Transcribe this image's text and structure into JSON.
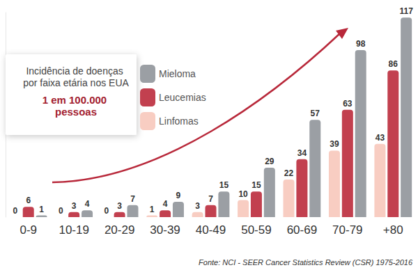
{
  "chart_data": {
    "type": "bar",
    "title": "Incidência de doenças por faixa etária nos EUA",
    "subtitle": "1 em 100.000 pessoas",
    "source": "Fonte: NCI - SEER Cancer Statistics Review (CSR) 1975-2016",
    "categories": [
      "0-9",
      "10-19",
      "20-29",
      "30-39",
      "40-49",
      "50-59",
      "60-69",
      "70-79",
      "+80"
    ],
    "series": [
      {
        "name": "Linfomas",
        "color": "#f8cdc2",
        "values": [
          0,
          0,
          0,
          1,
          3,
          10,
          22,
          39,
          43
        ]
      },
      {
        "name": "Leucemias",
        "color": "#c2404f",
        "values": [
          6,
          3,
          3,
          4,
          7,
          15,
          34,
          63,
          86
        ]
      },
      {
        "name": "Mieloma",
        "color": "#9b9fa4",
        "values": [
          1,
          4,
          7,
          9,
          15,
          29,
          57,
          98,
          117
        ]
      }
    ],
    "ylim": [
      0,
      120
    ],
    "grid": false,
    "legend": "top-left",
    "data_labels": true,
    "tick_labels": "x"
  }
}
